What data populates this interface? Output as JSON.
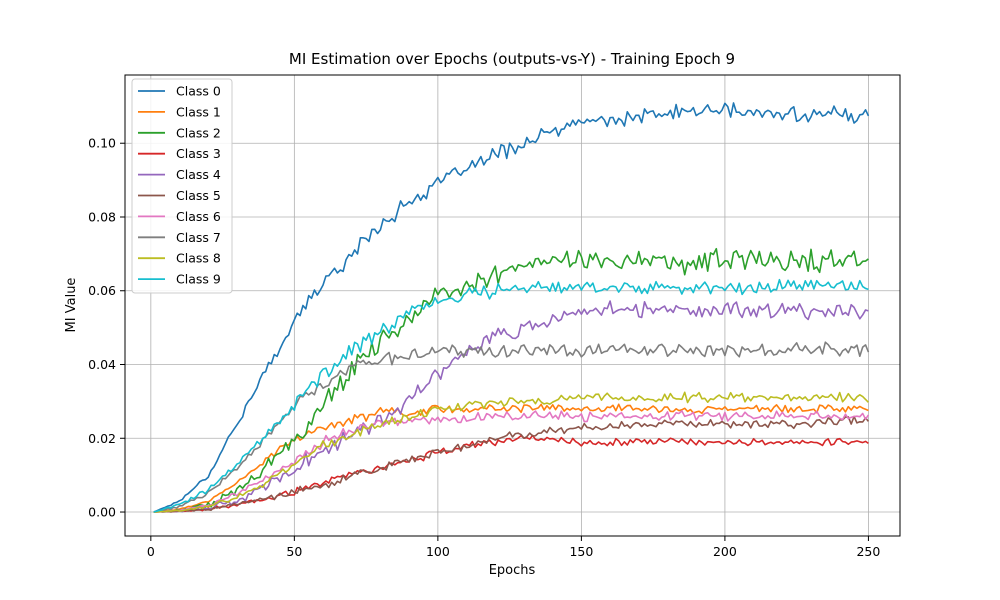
{
  "chart_data": {
    "type": "line",
    "title": "MI Estimation over Epochs (outputs-vs-Y) - Training Epoch 9",
    "xlabel": "Epochs",
    "ylabel": "MI Value",
    "xlim": [
      -9,
      261
    ],
    "ylim": [
      -0.0065,
      0.1185
    ],
    "xticks": [
      0,
      50,
      100,
      150,
      200,
      250
    ],
    "xtick_labels": [
      "0",
      "50",
      "100",
      "150",
      "200",
      "250"
    ],
    "yticks": [
      0.0,
      0.02,
      0.04,
      0.06,
      0.08,
      0.1
    ],
    "ytick_labels": [
      "0.00",
      "0.02",
      "0.04",
      "0.06",
      "0.08",
      "0.10"
    ],
    "grid": true,
    "legend_position": "top-left",
    "x": [
      1,
      10,
      20,
      30,
      40,
      50,
      60,
      70,
      80,
      90,
      100,
      110,
      120,
      130,
      140,
      150,
      160,
      170,
      180,
      190,
      200,
      210,
      220,
      230,
      240,
      250
    ],
    "series": [
      {
        "name": "Class 0",
        "color": "#1f77b4",
        "noise": 0.0025,
        "values": [
          0.0,
          0.003,
          0.01,
          0.024,
          0.038,
          0.052,
          0.062,
          0.07,
          0.078,
          0.084,
          0.089,
          0.093,
          0.097,
          0.1,
          0.103,
          0.106,
          0.106,
          0.107,
          0.108,
          0.109,
          0.109,
          0.108,
          0.108,
          0.108,
          0.108,
          0.107
        ]
      },
      {
        "name": "Class 1",
        "color": "#ff7f0e",
        "noise": 0.0014,
        "values": [
          0.0,
          0.0008,
          0.003,
          0.008,
          0.014,
          0.02,
          0.023,
          0.025,
          0.027,
          0.027,
          0.028,
          0.028,
          0.028,
          0.028,
          0.028,
          0.028,
          0.028,
          0.028,
          0.028,
          0.028,
          0.028,
          0.028,
          0.028,
          0.028,
          0.028,
          0.028
        ]
      },
      {
        "name": "Class 2",
        "color": "#2ca02c",
        "noise": 0.0035,
        "values": [
          0.0,
          0.0005,
          0.002,
          0.006,
          0.012,
          0.02,
          0.029,
          0.038,
          0.046,
          0.052,
          0.058,
          0.062,
          0.065,
          0.067,
          0.068,
          0.068,
          0.068,
          0.068,
          0.067,
          0.068,
          0.068,
          0.068,
          0.068,
          0.068,
          0.068,
          0.068
        ]
      },
      {
        "name": "Class 3",
        "color": "#d62728",
        "noise": 0.0012,
        "values": [
          0.0,
          0.0002,
          0.0008,
          0.002,
          0.0035,
          0.0055,
          0.008,
          0.01,
          0.012,
          0.014,
          0.016,
          0.018,
          0.019,
          0.02,
          0.02,
          0.019,
          0.019,
          0.019,
          0.019,
          0.019,
          0.019,
          0.019,
          0.019,
          0.019,
          0.019,
          0.019
        ]
      },
      {
        "name": "Class 4",
        "color": "#9467bd",
        "noise": 0.0028,
        "values": [
          0.0,
          0.0003,
          0.0012,
          0.003,
          0.007,
          0.012,
          0.017,
          0.021,
          0.025,
          0.031,
          0.038,
          0.044,
          0.048,
          0.05,
          0.052,
          0.054,
          0.055,
          0.055,
          0.055,
          0.055,
          0.055,
          0.055,
          0.055,
          0.054,
          0.055,
          0.054
        ]
      },
      {
        "name": "Class 5",
        "color": "#8c564b",
        "noise": 0.0014,
        "values": [
          0.0,
          0.0002,
          0.0008,
          0.002,
          0.0035,
          0.0055,
          0.0075,
          0.0095,
          0.012,
          0.014,
          0.016,
          0.018,
          0.02,
          0.021,
          0.022,
          0.023,
          0.023,
          0.024,
          0.024,
          0.024,
          0.024,
          0.024,
          0.024,
          0.024,
          0.025,
          0.025
        ]
      },
      {
        "name": "Class 6",
        "color": "#e377c2",
        "noise": 0.0016,
        "values": [
          0.0,
          0.0005,
          0.0018,
          0.005,
          0.009,
          0.014,
          0.019,
          0.022,
          0.024,
          0.025,
          0.025,
          0.025,
          0.026,
          0.026,
          0.026,
          0.026,
          0.026,
          0.026,
          0.026,
          0.026,
          0.026,
          0.026,
          0.026,
          0.026,
          0.026,
          0.026
        ]
      },
      {
        "name": "Class 7",
        "color": "#7f7f7f",
        "noise": 0.0022,
        "values": [
          0.0,
          0.0015,
          0.005,
          0.012,
          0.02,
          0.029,
          0.034,
          0.039,
          0.041,
          0.042,
          0.043,
          0.044,
          0.044,
          0.044,
          0.044,
          0.044,
          0.044,
          0.044,
          0.044,
          0.044,
          0.044,
          0.044,
          0.044,
          0.044,
          0.044,
          0.044
        ]
      },
      {
        "name": "Class 8",
        "color": "#bcbd22",
        "noise": 0.0016,
        "values": [
          0.0,
          0.0004,
          0.0015,
          0.004,
          0.008,
          0.013,
          0.018,
          0.021,
          0.024,
          0.026,
          0.028,
          0.029,
          0.03,
          0.03,
          0.03,
          0.031,
          0.031,
          0.031,
          0.031,
          0.031,
          0.031,
          0.031,
          0.031,
          0.031,
          0.031,
          0.031
        ]
      },
      {
        "name": "Class 9",
        "color": "#17becf",
        "noise": 0.0022,
        "values": [
          0.0,
          0.002,
          0.006,
          0.013,
          0.021,
          0.029,
          0.037,
          0.044,
          0.049,
          0.054,
          0.057,
          0.059,
          0.06,
          0.061,
          0.061,
          0.061,
          0.061,
          0.061,
          0.061,
          0.061,
          0.061,
          0.061,
          0.061,
          0.061,
          0.061,
          0.061
        ]
      }
    ]
  }
}
